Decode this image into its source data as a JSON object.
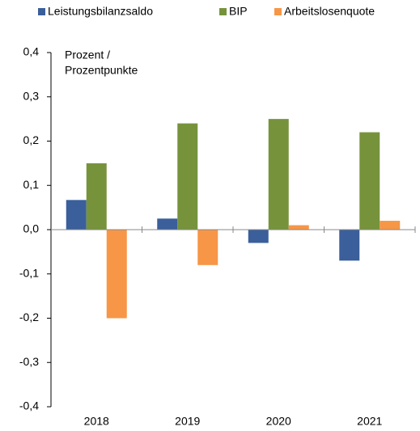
{
  "chart_data": {
    "type": "bar",
    "categories": [
      "2018",
      "2019",
      "2020",
      "2021"
    ],
    "series": [
      {
        "name": "Leistungsbilanzsaldo",
        "color": "#3a5f9a",
        "values": [
          0.067,
          0.025,
          -0.03,
          -0.07
        ]
      },
      {
        "name": "BIP",
        "color": "#76933c",
        "values": [
          0.15,
          0.24,
          0.25,
          0.22
        ]
      },
      {
        "name": "Arbeitslosenquote",
        "color": "#f79646",
        "values": [
          -0.2,
          -0.08,
          0.01,
          0.02
        ]
      }
    ],
    "y_label": [
      "Prozent /",
      "Prozentpunkte"
    ],
    "ylim": [
      -0.4,
      0.4
    ],
    "yticks": [
      {
        "value": -0.4,
        "label": "-0,4"
      },
      {
        "value": -0.3,
        "label": "-0,3"
      },
      {
        "value": -0.2,
        "label": "-0,2"
      },
      {
        "value": -0.1,
        "label": "-0,1"
      },
      {
        "value": 0,
        "label": "0,0"
      },
      {
        "value": 0.1,
        "label": "0,1"
      },
      {
        "value": 0.2,
        "label": "0,2"
      },
      {
        "value": 0.3,
        "label": "0,3"
      },
      {
        "value": 0.4,
        "label": "0,4"
      }
    ],
    "grid": false,
    "legend": "top"
  }
}
